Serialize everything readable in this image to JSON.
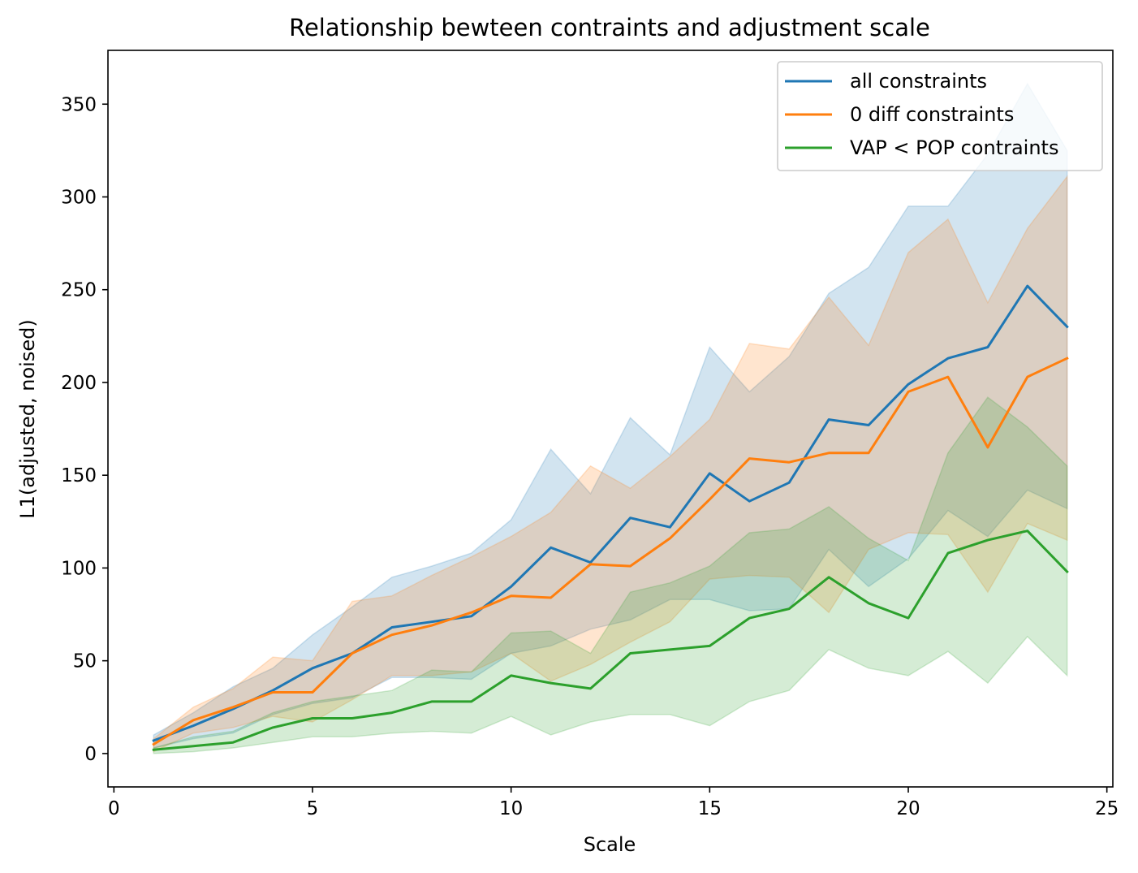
{
  "chart_data": {
    "type": "line",
    "title": "Relationship bewteen contraints and adjustment scale",
    "xlabel": "Scale",
    "ylabel": "L1(adjusted, noised)",
    "xlim": [
      -0.15,
      25.15
    ],
    "ylim": [
      -18,
      379
    ],
    "xticks": [
      0,
      5,
      10,
      15,
      20,
      25
    ],
    "yticks": [
      0,
      50,
      100,
      150,
      200,
      250,
      300,
      350
    ],
    "grid": false,
    "legend_position": "top-right",
    "x": [
      1,
      2,
      3,
      4,
      5,
      6,
      7,
      8,
      9,
      10,
      11,
      12,
      13,
      14,
      15,
      16,
      17,
      18,
      19,
      20,
      21,
      22,
      23,
      24
    ],
    "series": [
      {
        "name": "all constraints",
        "color": "#1f77b4",
        "values": [
          7,
          15,
          24,
          34,
          46,
          54,
          68,
          71,
          74,
          90,
          111,
          103,
          127,
          122,
          151,
          136,
          146,
          180,
          177,
          199,
          213,
          219,
          252,
          230
        ],
        "lower": [
          3,
          8,
          11,
          21,
          27,
          30,
          41,
          41,
          40,
          54,
          58,
          67,
          72,
          83,
          83,
          77,
          78,
          110,
          90,
          105,
          131,
          117,
          142,
          132
        ],
        "upper": [
          10,
          22,
          36,
          46,
          64,
          79,
          95,
          101,
          108,
          126,
          164,
          140,
          181,
          161,
          219,
          195,
          214,
          248,
          262,
          295,
          295,
          323,
          361,
          325
        ]
      },
      {
        "name": "0 diff constraints",
        "color": "#ff7f0e",
        "values": [
          5,
          18,
          25,
          33,
          33,
          54,
          64,
          69,
          76,
          85,
          84,
          102,
          101,
          116,
          137,
          159,
          157,
          162,
          162,
          195,
          203,
          165,
          203,
          213
        ],
        "lower": [
          1,
          11,
          14,
          20,
          17,
          29,
          42,
          42,
          44,
          54,
          39,
          48,
          60,
          71,
          94,
          96,
          95,
          76,
          110,
          119,
          118,
          87,
          124,
          115
        ],
        "upper": [
          8,
          25,
          35,
          52,
          50,
          82,
          85,
          96,
          106,
          117,
          130,
          155,
          143,
          160,
          180,
          221,
          218,
          246,
          220,
          270,
          288,
          243,
          283,
          311
        ]
      },
      {
        "name": "VAP < POP contraints",
        "color": "#2ca02c",
        "values": [
          2,
          4,
          6,
          14,
          19,
          19,
          22,
          28,
          28,
          42,
          38,
          35,
          54,
          56,
          58,
          73,
          78,
          95,
          81,
          73,
          108,
          115,
          120,
          98
        ],
        "lower": [
          0,
          1,
          3,
          6,
          9,
          9,
          11,
          12,
          11,
          20,
          10,
          17,
          21,
          21,
          15,
          28,
          34,
          56,
          46,
          42,
          55,
          38,
          63,
          42
        ],
        "upper": [
          3,
          9,
          12,
          22,
          28,
          31,
          34,
          45,
          44,
          65,
          66,
          54,
          87,
          92,
          101,
          119,
          121,
          133,
          116,
          104,
          162,
          192,
          176,
          155
        ]
      }
    ]
  }
}
